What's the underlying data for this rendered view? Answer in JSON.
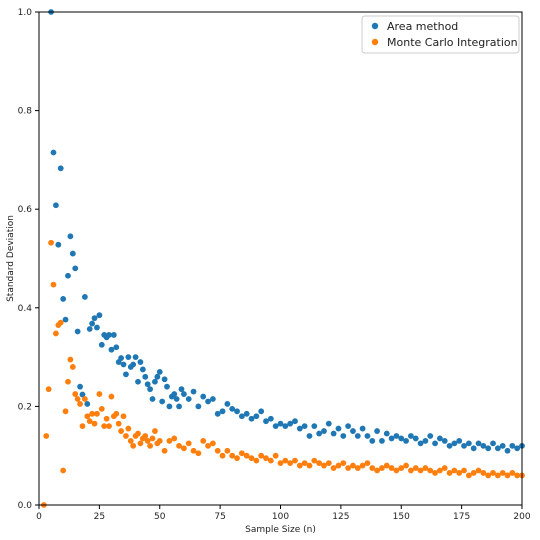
{
  "chart_data": {
    "type": "scatter",
    "title": "",
    "xlabel": "Sample Size (n)",
    "ylabel": "Standard Deviation",
    "xlim": [
      0,
      200
    ],
    "ylim": [
      0,
      1.0
    ],
    "xticks": [
      "0",
      "25",
      "50",
      "75",
      "100",
      "125",
      "150",
      "175",
      "200"
    ],
    "yticks": [
      "0.0",
      "0.2",
      "0.4",
      "0.6",
      "0.8",
      "1.0"
    ],
    "grid": false,
    "legend_position": "top-right",
    "series": [
      {
        "name": "Area method",
        "color": "#1f77b4",
        "points": [
          [
            5,
            1.0
          ],
          [
            6,
            0.715
          ],
          [
            7,
            0.608
          ],
          [
            8,
            0.528
          ],
          [
            9,
            0.683
          ],
          [
            10,
            0.418
          ],
          [
            11,
            0.376
          ],
          [
            12,
            0.465
          ],
          [
            13,
            0.545
          ],
          [
            14,
            0.51
          ],
          [
            15,
            0.48
          ],
          [
            16,
            0.352
          ],
          [
            17,
            0.24
          ],
          [
            18,
            0.224
          ],
          [
            19,
            0.422
          ],
          [
            20,
            0.205
          ],
          [
            21,
            0.357
          ],
          [
            22,
            0.368
          ],
          [
            23,
            0.379
          ],
          [
            24,
            0.36
          ],
          [
            25,
            0.385
          ],
          [
            26,
            0.325
          ],
          [
            27,
            0.345
          ],
          [
            28,
            0.34
          ],
          [
            29,
            0.345
          ],
          [
            30,
            0.315
          ],
          [
            31,
            0.345
          ],
          [
            32,
            0.32
          ],
          [
            33,
            0.29
          ],
          [
            34,
            0.298
          ],
          [
            35,
            0.285
          ],
          [
            36,
            0.265
          ],
          [
            37,
            0.3
          ],
          [
            38,
            0.28
          ],
          [
            39,
            0.285
          ],
          [
            40,
            0.3
          ],
          [
            41,
            0.25
          ],
          [
            42,
            0.29
          ],
          [
            43,
            0.275
          ],
          [
            44,
            0.26
          ],
          [
            45,
            0.245
          ],
          [
            46,
            0.235
          ],
          [
            47,
            0.215
          ],
          [
            48,
            0.25
          ],
          [
            49,
            0.26
          ],
          [
            50,
            0.27
          ],
          [
            51,
            0.21
          ],
          [
            52,
            0.255
          ],
          [
            53,
            0.24
          ],
          [
            54,
            0.2
          ],
          [
            55,
            0.22
          ],
          [
            56,
            0.225
          ],
          [
            57,
            0.215
          ],
          [
            58,
            0.2
          ],
          [
            59,
            0.235
          ],
          [
            60,
            0.225
          ],
          [
            62,
            0.215
          ],
          [
            64,
            0.23
          ],
          [
            66,
            0.2
          ],
          [
            68,
            0.22
          ],
          [
            70,
            0.21
          ],
          [
            72,
            0.215
          ],
          [
            74,
            0.185
          ],
          [
            76,
            0.19
          ],
          [
            78,
            0.205
          ],
          [
            80,
            0.195
          ],
          [
            82,
            0.19
          ],
          [
            84,
            0.18
          ],
          [
            86,
            0.185
          ],
          [
            88,
            0.175
          ],
          [
            90,
            0.18
          ],
          [
            92,
            0.19
          ],
          [
            94,
            0.17
          ],
          [
            96,
            0.175
          ],
          [
            98,
            0.16
          ],
          [
            100,
            0.165
          ],
          [
            102,
            0.16
          ],
          [
            104,
            0.165
          ],
          [
            106,
            0.17
          ],
          [
            108,
            0.155
          ],
          [
            110,
            0.16
          ],
          [
            112,
            0.14
          ],
          [
            114,
            0.16
          ],
          [
            116,
            0.145
          ],
          [
            118,
            0.15
          ],
          [
            120,
            0.165
          ],
          [
            122,
            0.145
          ],
          [
            124,
            0.155
          ],
          [
            126,
            0.14
          ],
          [
            128,
            0.16
          ],
          [
            130,
            0.15
          ],
          [
            132,
            0.14
          ],
          [
            134,
            0.155
          ],
          [
            136,
            0.14
          ],
          [
            138,
            0.13
          ],
          [
            140,
            0.15
          ],
          [
            142,
            0.13
          ],
          [
            144,
            0.145
          ],
          [
            146,
            0.135
          ],
          [
            148,
            0.14
          ],
          [
            150,
            0.135
          ],
          [
            152,
            0.13
          ],
          [
            154,
            0.14
          ],
          [
            156,
            0.135
          ],
          [
            158,
            0.125
          ],
          [
            160,
            0.13
          ],
          [
            162,
            0.14
          ],
          [
            164,
            0.125
          ],
          [
            166,
            0.135
          ],
          [
            168,
            0.13
          ],
          [
            170,
            0.12
          ],
          [
            172,
            0.125
          ],
          [
            174,
            0.13
          ],
          [
            176,
            0.12
          ],
          [
            178,
            0.125
          ],
          [
            180,
            0.115
          ],
          [
            182,
            0.125
          ],
          [
            184,
            0.12
          ],
          [
            186,
            0.115
          ],
          [
            188,
            0.125
          ],
          [
            190,
            0.115
          ],
          [
            192,
            0.12
          ],
          [
            194,
            0.11
          ],
          [
            196,
            0.12
          ],
          [
            198,
            0.115
          ],
          [
            200,
            0.12
          ]
        ]
      },
      {
        "name": "Monte Carlo Integration",
        "color": "#ff7f0e",
        "points": [
          [
            2,
            0.0
          ],
          [
            3,
            0.14
          ],
          [
            4,
            0.235
          ],
          [
            5,
            0.532
          ],
          [
            6,
            0.447
          ],
          [
            7,
            0.348
          ],
          [
            8,
            0.365
          ],
          [
            9,
            0.37
          ],
          [
            10,
            0.07
          ],
          [
            11,
            0.19
          ],
          [
            12,
            0.25
          ],
          [
            13,
            0.295
          ],
          [
            14,
            0.28
          ],
          [
            15,
            0.225
          ],
          [
            16,
            0.215
          ],
          [
            17,
            0.205
          ],
          [
            18,
            0.16
          ],
          [
            19,
            0.215
          ],
          [
            20,
            0.18
          ],
          [
            21,
            0.17
          ],
          [
            22,
            0.185
          ],
          [
            23,
            0.165
          ],
          [
            24,
            0.185
          ],
          [
            25,
            0.225
          ],
          [
            26,
            0.195
          ],
          [
            27,
            0.16
          ],
          [
            28,
            0.175
          ],
          [
            29,
            0.16
          ],
          [
            30,
            0.22
          ],
          [
            31,
            0.18
          ],
          [
            32,
            0.185
          ],
          [
            33,
            0.165
          ],
          [
            34,
            0.15
          ],
          [
            35,
            0.18
          ],
          [
            36,
            0.14
          ],
          [
            37,
            0.155
          ],
          [
            38,
            0.13
          ],
          [
            39,
            0.12
          ],
          [
            40,
            0.14
          ],
          [
            41,
            0.145
          ],
          [
            42,
            0.125
          ],
          [
            43,
            0.135
          ],
          [
            44,
            0.14
          ],
          [
            45,
            0.13
          ],
          [
            46,
            0.12
          ],
          [
            47,
            0.135
          ],
          [
            48,
            0.15
          ],
          [
            49,
            0.125
          ],
          [
            50,
            0.13
          ],
          [
            52,
            0.11
          ],
          [
            54,
            0.13
          ],
          [
            56,
            0.135
          ],
          [
            58,
            0.12
          ],
          [
            60,
            0.115
          ],
          [
            62,
            0.125
          ],
          [
            64,
            0.11
          ],
          [
            66,
            0.105
          ],
          [
            68,
            0.13
          ],
          [
            70,
            0.12
          ],
          [
            72,
            0.125
          ],
          [
            74,
            0.11
          ],
          [
            76,
            0.1
          ],
          [
            78,
            0.11
          ],
          [
            80,
            0.1
          ],
          [
            82,
            0.095
          ],
          [
            84,
            0.105
          ],
          [
            86,
            0.1
          ],
          [
            88,
            0.095
          ],
          [
            90,
            0.09
          ],
          [
            92,
            0.1
          ],
          [
            94,
            0.095
          ],
          [
            96,
            0.09
          ],
          [
            98,
            0.1
          ],
          [
            100,
            0.085
          ],
          [
            102,
            0.09
          ],
          [
            104,
            0.085
          ],
          [
            106,
            0.09
          ],
          [
            108,
            0.08
          ],
          [
            110,
            0.085
          ],
          [
            112,
            0.08
          ],
          [
            114,
            0.09
          ],
          [
            116,
            0.085
          ],
          [
            118,
            0.08
          ],
          [
            120,
            0.085
          ],
          [
            122,
            0.075
          ],
          [
            124,
            0.08
          ],
          [
            126,
            0.085
          ],
          [
            128,
            0.075
          ],
          [
            130,
            0.08
          ],
          [
            132,
            0.075
          ],
          [
            134,
            0.08
          ],
          [
            136,
            0.085
          ],
          [
            138,
            0.075
          ],
          [
            140,
            0.07
          ],
          [
            142,
            0.075
          ],
          [
            144,
            0.08
          ],
          [
            146,
            0.075
          ],
          [
            148,
            0.07
          ],
          [
            150,
            0.075
          ],
          [
            152,
            0.08
          ],
          [
            154,
            0.07
          ],
          [
            156,
            0.075
          ],
          [
            158,
            0.07
          ],
          [
            160,
            0.075
          ],
          [
            162,
            0.07
          ],
          [
            164,
            0.065
          ],
          [
            166,
            0.07
          ],
          [
            168,
            0.075
          ],
          [
            170,
            0.065
          ],
          [
            172,
            0.07
          ],
          [
            174,
            0.065
          ],
          [
            176,
            0.07
          ],
          [
            178,
            0.06
          ],
          [
            180,
            0.065
          ],
          [
            182,
            0.07
          ],
          [
            184,
            0.065
          ],
          [
            186,
            0.06
          ],
          [
            188,
            0.065
          ],
          [
            190,
            0.06
          ],
          [
            192,
            0.065
          ],
          [
            194,
            0.06
          ],
          [
            196,
            0.065
          ],
          [
            198,
            0.06
          ],
          [
            200,
            0.06
          ]
        ]
      }
    ]
  }
}
